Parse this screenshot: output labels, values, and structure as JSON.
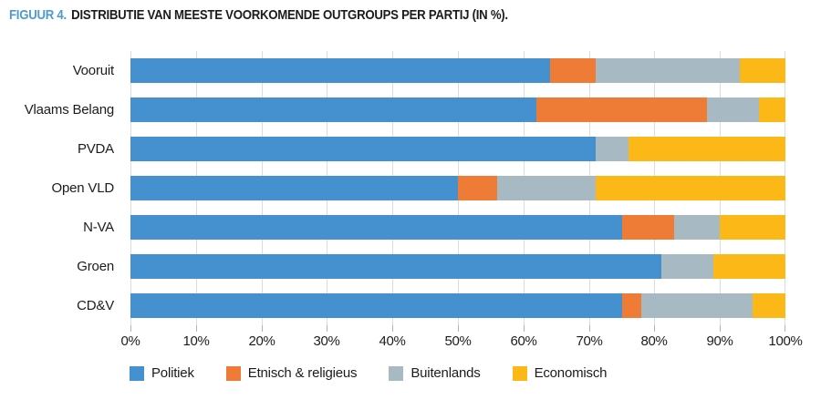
{
  "title": {
    "prefix": "FIGUUR 4.",
    "text": "DISTRIBUTIE VAN MEESTE VOORKOMENDE OUTGROUPS PER PARTIJ (IN %)."
  },
  "colors": {
    "title_prefix": "#4d9ad3",
    "politiek": "#4591d0",
    "etnisch_religieus": "#ee7b36",
    "buitenlands": "#a7b9c3",
    "economisch": "#fcb817",
    "gridline": "#dcdcdc",
    "tick": "#b3b3b3",
    "text": "#1c1c1c",
    "background": "#ffffff"
  },
  "chart_data": {
    "type": "bar",
    "orientation": "horizontal",
    "stacked": true,
    "title": "FIGUUR 4. DISTRIBUTIE VAN MEESTE VOORKOMENDE OUTGROUPS PER PARTIJ (IN %).",
    "categories": [
      "Vooruit",
      "Vlaams Belang",
      "PVDA",
      "Open VLD",
      "N-VA",
      "Groen",
      "CD&V"
    ],
    "series": [
      {
        "name": "Politiek",
        "color": "#4591d0",
        "values": [
          64,
          62,
          71,
          50,
          75,
          81,
          75
        ]
      },
      {
        "name": "Etnisch & religieus",
        "color": "#ee7b36",
        "values": [
          7,
          26,
          0,
          6,
          8,
          0,
          3
        ]
      },
      {
        "name": "Buitenlands",
        "color": "#a7b9c3",
        "values": [
          22,
          8,
          5,
          15,
          7,
          8,
          17
        ]
      },
      {
        "name": "Economisch",
        "color": "#fcb817",
        "values": [
          7,
          4,
          24,
          29,
          10,
          11,
          5
        ]
      }
    ],
    "xlim": [
      0,
      100
    ],
    "x_ticks": [
      "0%",
      "10%",
      "20%",
      "30%",
      "40%",
      "50%",
      "60%",
      "70%",
      "80%",
      "90%",
      "100%"
    ],
    "xlabel": "",
    "ylabel": "",
    "grid": "vertical",
    "legend_position": "bottom"
  }
}
